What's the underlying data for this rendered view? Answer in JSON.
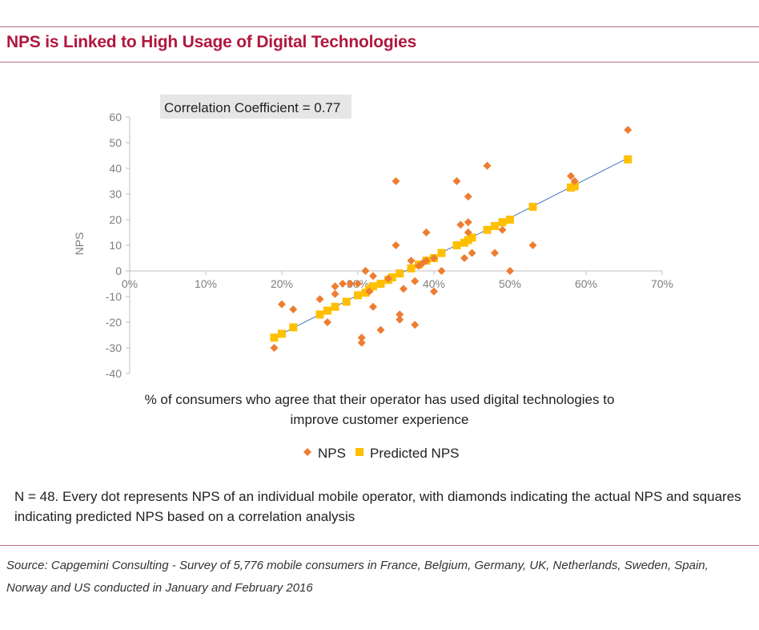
{
  "header": {
    "title": "NPS is Linked to High Usage of Digital Technologies"
  },
  "chart_data": {
    "type": "scatter",
    "annotation": "Correlation Coefficient = 0.77",
    "ylabel": "NPS",
    "xlabel_lines": [
      "% of consumers who agree that their operator has used digital technologies to",
      "improve customer experience"
    ],
    "xlim": [
      0,
      0.7
    ],
    "ylim": [
      -40,
      60
    ],
    "x_ticks": [
      0,
      0.1,
      0.2,
      0.3,
      0.4,
      0.5,
      0.6,
      0.7
    ],
    "x_tick_labels": [
      "0%",
      "10%",
      "20%",
      "30%",
      "40%",
      "50%",
      "60%",
      "70%"
    ],
    "y_ticks": [
      -40,
      -30,
      -20,
      -10,
      0,
      10,
      20,
      30,
      40,
      50,
      60
    ],
    "y_tick_labels": [
      "-40",
      "-30",
      "-20",
      "-10",
      "0",
      "10",
      "20",
      "30",
      "40",
      "50",
      "60"
    ],
    "legend": [
      {
        "name": "NPS",
        "marker": "diamond",
        "color": "#ed7d31"
      },
      {
        "name": "Predicted NPS",
        "marker": "square",
        "color": "#ffc000"
      }
    ],
    "series": [
      {
        "name": "NPS",
        "marker": "diamond",
        "color": "#ed7d31",
        "points": [
          [
            0.19,
            -30
          ],
          [
            0.2,
            -13
          ],
          [
            0.215,
            -15
          ],
          [
            0.25,
            -11
          ],
          [
            0.26,
            -20
          ],
          [
            0.27,
            -9
          ],
          [
            0.27,
            -6
          ],
          [
            0.28,
            -5
          ],
          [
            0.29,
            -5
          ],
          [
            0.3,
            -5
          ],
          [
            0.305,
            -26
          ],
          [
            0.305,
            -28
          ],
          [
            0.31,
            0
          ],
          [
            0.315,
            -8
          ],
          [
            0.32,
            -14
          ],
          [
            0.32,
            -2
          ],
          [
            0.33,
            -23
          ],
          [
            0.34,
            -3
          ],
          [
            0.35,
            35
          ],
          [
            0.35,
            10
          ],
          [
            0.355,
            -19
          ],
          [
            0.355,
            -17
          ],
          [
            0.36,
            -7
          ],
          [
            0.37,
            4
          ],
          [
            0.375,
            -21
          ],
          [
            0.375,
            -4
          ],
          [
            0.38,
            2
          ],
          [
            0.385,
            3
          ],
          [
            0.39,
            15
          ],
          [
            0.39,
            4
          ],
          [
            0.4,
            -8
          ],
          [
            0.4,
            5
          ],
          [
            0.41,
            0
          ],
          [
            0.43,
            35
          ],
          [
            0.435,
            18
          ],
          [
            0.44,
            5
          ],
          [
            0.445,
            29
          ],
          [
            0.445,
            19
          ],
          [
            0.445,
            15
          ],
          [
            0.45,
            7
          ],
          [
            0.47,
            41
          ],
          [
            0.48,
            7
          ],
          [
            0.49,
            16
          ],
          [
            0.5,
            0
          ],
          [
            0.53,
            10
          ],
          [
            0.58,
            37
          ],
          [
            0.585,
            35
          ],
          [
            0.655,
            55
          ]
        ]
      },
      {
        "name": "Predicted NPS",
        "marker": "square",
        "color": "#ffc000",
        "points": [
          [
            0.19,
            -26
          ],
          [
            0.2,
            -24.5
          ],
          [
            0.215,
            -22
          ],
          [
            0.25,
            -17
          ],
          [
            0.26,
            -15.5
          ],
          [
            0.27,
            -14
          ],
          [
            0.285,
            -12
          ],
          [
            0.3,
            -9.5
          ],
          [
            0.31,
            -8.5
          ],
          [
            0.315,
            -7
          ],
          [
            0.32,
            -6
          ],
          [
            0.33,
            -5
          ],
          [
            0.34,
            -3.5
          ],
          [
            0.345,
            -2.5
          ],
          [
            0.355,
            -1
          ],
          [
            0.37,
            1
          ],
          [
            0.38,
            2.5
          ],
          [
            0.39,
            4
          ],
          [
            0.4,
            5
          ],
          [
            0.41,
            7
          ],
          [
            0.43,
            10
          ],
          [
            0.44,
            11
          ],
          [
            0.445,
            12
          ],
          [
            0.45,
            13
          ],
          [
            0.47,
            16
          ],
          [
            0.48,
            17.5
          ],
          [
            0.49,
            19
          ],
          [
            0.5,
            20
          ],
          [
            0.53,
            25
          ],
          [
            0.58,
            32.5
          ],
          [
            0.585,
            33
          ],
          [
            0.655,
            43.5
          ]
        ]
      }
    ],
    "trendline": {
      "x": [
        0.19,
        0.655
      ],
      "y": [
        -26,
        44
      ],
      "color": "#4472c4"
    }
  },
  "footnote": {
    "text": "N = 48. Every dot represents NPS of an individual mobile operator, with diamonds indicating the actual NPS and squares indicating predicted NPS based on a correlation analysis"
  },
  "source": {
    "text": "Source: Capgemini Consulting - Survey of 5,776 mobile consumers in France, Belgium, Germany, UK, Netherlands, Sweden, Spain, Norway and US conducted in January and February 2016"
  }
}
